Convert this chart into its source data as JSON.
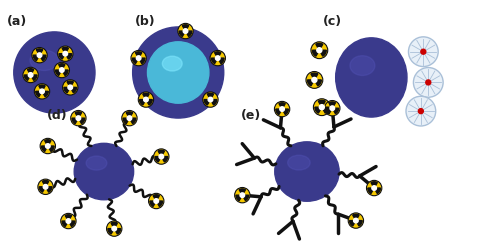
{
  "bg_color": "#ffffff",
  "np_color": "#3a3a8c",
  "np_highlight": "#5555bb",
  "nanocapsule_inner": "#4ab8d8",
  "nanocapsule_inner_hl": "#80e8ff",
  "dendrimer_color": "#e8f0f8",
  "dendrimer_edge": "#aac0d8",
  "dendrimer_line": "#aac0d8",
  "dendrimer_dot": "#cc0000",
  "radiation_yellow": "#f5c800",
  "radiation_black": "#111111",
  "line_color": "#111111",
  "label_color": "#222222",
  "labels": [
    "(a)",
    "(b)",
    "(c)",
    "(d)",
    "(e)"
  ],
  "figsize": [
    5.0,
    2.49
  ],
  "dpi": 100,
  "xlim": [
    0,
    10
  ],
  "ylim": [
    0,
    5
  ]
}
